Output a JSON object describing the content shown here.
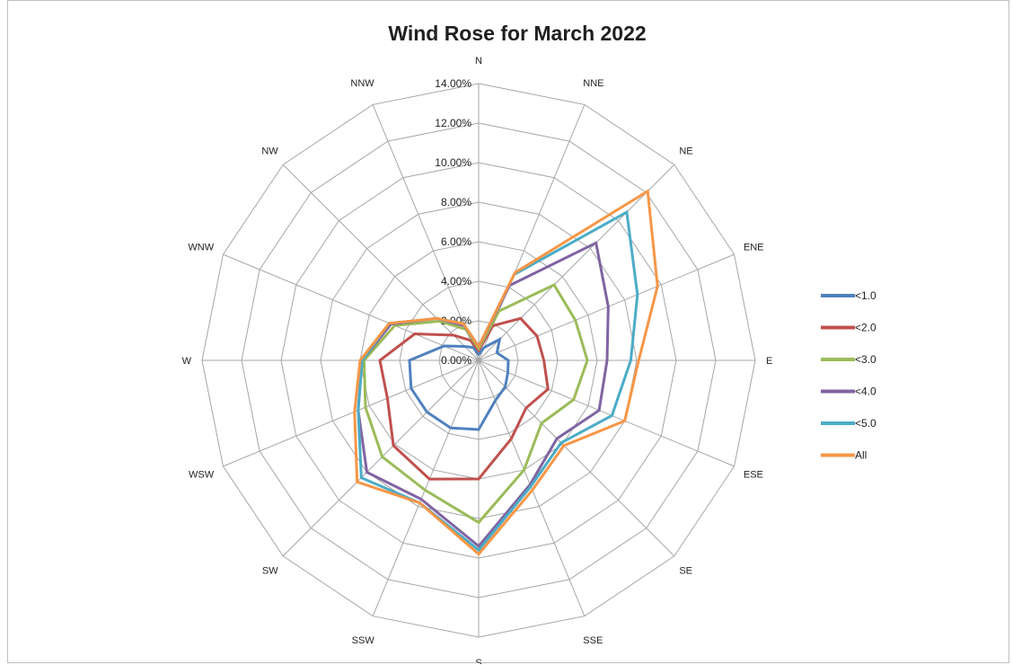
{
  "chart_data": {
    "type": "radar",
    "title": "Wind Rose for March 2022",
    "directions": [
      "N",
      "NNE",
      "NE",
      "ENE",
      "E",
      "ESE",
      "SE",
      "SSE",
      "S",
      "SSW",
      "SW",
      "WSW",
      "W",
      "WNW",
      "NW",
      "NNW"
    ],
    "rlim": [
      0,
      14
    ],
    "tick_labels": [
      "0.00%",
      "2.00%",
      "4.00%",
      "6.00%",
      "8.00%",
      "10.00%",
      "12.00%",
      "14.00%"
    ],
    "tick_values": [
      0,
      2,
      4,
      6,
      8,
      10,
      12,
      14
    ],
    "grid": true,
    "legend_position": "right",
    "series": [
      {
        "name": "<1.0",
        "color": "#4f81bd",
        "values": [
          0.3,
          0.7,
          1.5,
          1.0,
          1.5,
          1.6,
          1.9,
          2.2,
          3.5,
          3.7,
          3.7,
          3.7,
          3.5,
          1.9,
          1.0,
          0.7
        ]
      },
      {
        "name": "<2.0",
        "color": "#c0504d",
        "values": [
          0.5,
          1.9,
          3.0,
          3.2,
          3.3,
          3.8,
          3.4,
          4.3,
          6.0,
          6.5,
          6.1,
          5.0,
          5.0,
          3.5,
          1.8,
          1.1
        ]
      },
      {
        "name": "<3.0",
        "color": "#9bbb59",
        "values": [
          0.6,
          2.7,
          5.4,
          5.3,
          5.5,
          5.2,
          4.5,
          6.0,
          8.2,
          7.1,
          6.9,
          6.2,
          5.8,
          4.6,
          2.8,
          1.7
        ]
      },
      {
        "name": "<4.0",
        "color": "#8064a2",
        "values": [
          0.7,
          4.1,
          8.4,
          7.1,
          6.5,
          6.6,
          5.6,
          6.8,
          9.4,
          7.6,
          8.0,
          6.6,
          5.9,
          4.8,
          3.0,
          1.9
        ]
      },
      {
        "name": "<5.0",
        "color": "#4bacc6",
        "values": [
          0.7,
          4.7,
          10.6,
          8.7,
          7.7,
          7.3,
          5.9,
          6.9,
          9.6,
          7.8,
          8.4,
          6.6,
          5.9,
          4.9,
          3.0,
          2.0
        ]
      },
      {
        "name": "All",
        "color": "#f79646",
        "values": [
          0.7,
          4.8,
          12.1,
          9.8,
          8.1,
          8.0,
          6.1,
          7.1,
          9.8,
          7.8,
          8.7,
          6.8,
          6.0,
          4.9,
          3.0,
          2.0
        ]
      }
    ]
  }
}
